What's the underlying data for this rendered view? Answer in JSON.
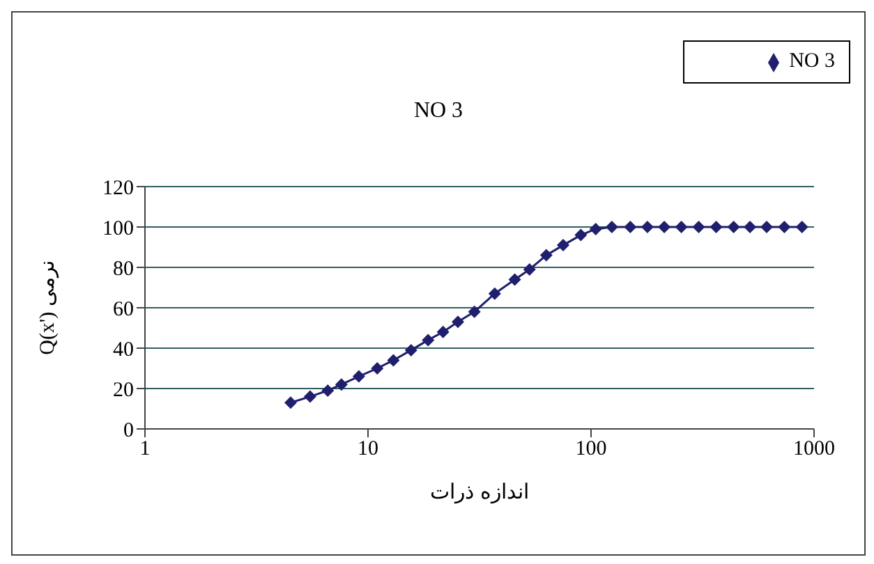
{
  "chart_data": {
    "type": "line",
    "title": "NO 3",
    "xlabel": "اندازه ذرات",
    "ylabel": "Q(x') نرمی",
    "log": "x",
    "xlim": [
      1,
      1000
    ],
    "xticks": [
      1,
      10,
      100,
      1000
    ],
    "ylim": [
      0,
      120
    ],
    "yticks": [
      0,
      20,
      40,
      60,
      80,
      100,
      120
    ],
    "grid": "y",
    "legend": "top right",
    "marker": "diamond",
    "x": [
      4.5,
      5.5,
      6.6,
      7.6,
      9.1,
      11,
      13,
      15.6,
      18.6,
      21.7,
      25.3,
      30,
      37,
      45.5,
      53,
      63,
      75,
      90,
      105,
      124,
      150,
      179,
      213,
      254,
      304,
      364,
      436,
      516,
      613,
      736,
      883
    ],
    "series": [
      {
        "name": "NO 3",
        "color": "#1f1f6e",
        "values": [
          13,
          16,
          19,
          22,
          26,
          30,
          34,
          39,
          44,
          48,
          53,
          58,
          67,
          74,
          79,
          86,
          91,
          96,
          99,
          100,
          100,
          100,
          100,
          100,
          100,
          100,
          100,
          100,
          100,
          100,
          100
        ]
      }
    ]
  }
}
